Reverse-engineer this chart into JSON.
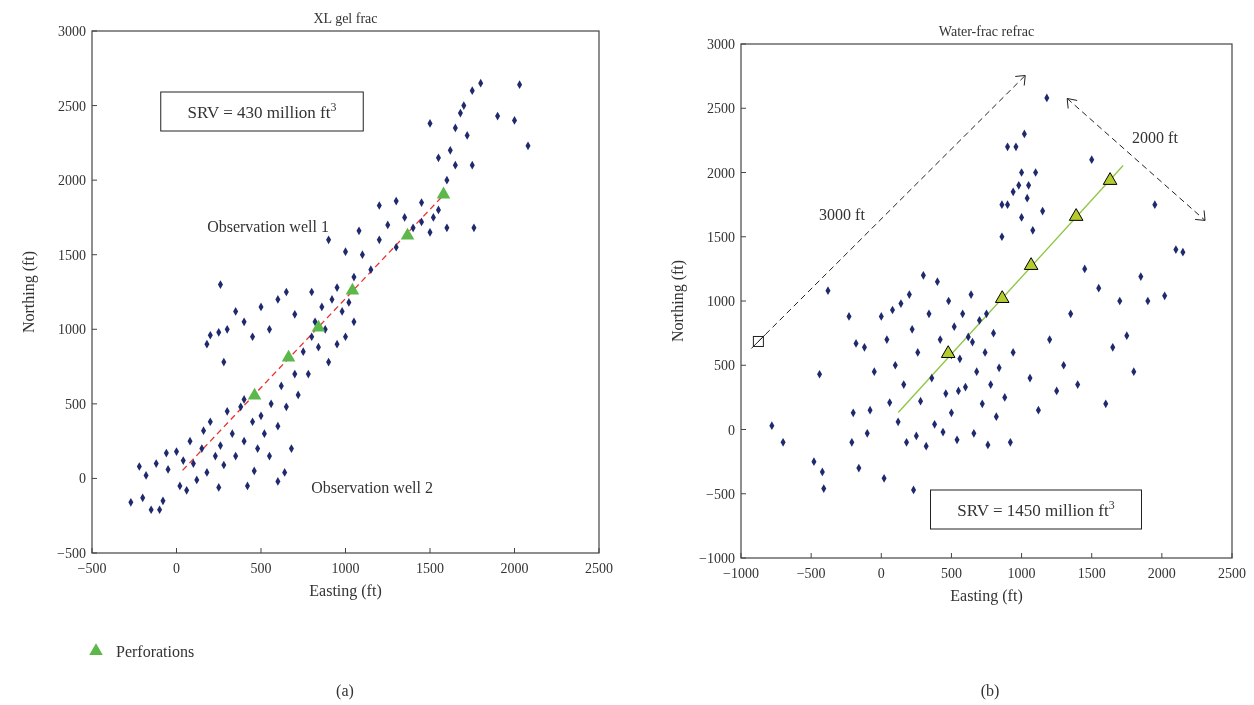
{
  "chart_data": [
    {
      "type": "scatter",
      "title": "XL gel frac",
      "xlabel": "Easting (ft)",
      "ylabel": "Northing (ft)",
      "xlim": [
        -500,
        2500
      ],
      "ylim": [
        -500,
        3000
      ],
      "xticks": [
        -500,
        0,
        500,
        1000,
        1500,
        2000,
        2500
      ],
      "yticks": [
        -500,
        0,
        500,
        1000,
        1500,
        2000,
        2500,
        3000
      ],
      "grid": false,
      "legend": "bottom left",
      "annotations": [
        "SRV = 430 million ft$^{3}$",
        "Observation well 1",
        "Observation well 2",
        "(a)"
      ],
      "series": [
        {
          "color": "#1f2a6e",
          "marker": "diamond",
          "x": [
            -270,
            -200,
            -150,
            -100,
            -80,
            -220,
            -180,
            -120,
            -60,
            -50,
            0,
            20,
            40,
            60,
            80,
            100,
            120,
            150,
            160,
            180,
            200,
            230,
            250,
            260,
            280,
            300,
            330,
            350,
            380,
            400,
            420,
            450,
            460,
            480,
            500,
            520,
            550,
            560,
            600,
            620,
            650,
            680,
            700,
            720,
            750,
            780,
            800,
            820,
            840,
            860,
            880,
            900,
            920,
            950,
            980,
            1000,
            1020,
            1050,
            700,
            650,
            600,
            550,
            500,
            450,
            400,
            350,
            300,
            250,
            200,
            180,
            260,
            280,
            800,
            1050,
            1100,
            1150,
            1200,
            1250,
            1300,
            1350,
            1400,
            1450,
            1500,
            1520,
            1550,
            1450,
            1600,
            1620,
            1550,
            1650,
            1700,
            1750,
            1800,
            1680,
            1720,
            1650,
            1750,
            1900,
            2000,
            2030,
            2080,
            1760,
            1500,
            1600,
            950,
            1080,
            1000,
            1200,
            1300,
            600,
            640,
            400,
            900
          ],
          "values": [
            -160,
            -130,
            -210,
            -210,
            -150,
            80,
            20,
            100,
            170,
            60,
            180,
            -50,
            120,
            -80,
            250,
            100,
            -10,
            200,
            320,
            40,
            380,
            150,
            -60,
            220,
            90,
            450,
            300,
            150,
            480,
            250,
            -50,
            380,
            50,
            200,
            420,
            300,
            150,
            500,
            350,
            620,
            480,
            200,
            700,
            560,
            850,
            700,
            950,
            1050,
            880,
            1150,
            1000,
            780,
            1200,
            900,
            1120,
            950,
            1180,
            1050,
            1100,
            1250,
            1200,
            1000,
            1150,
            950,
            1050,
            1120,
            1000,
            980,
            960,
            900,
            1300,
            780,
            1250,
            1350,
            1500,
            1400,
            1600,
            1700,
            1550,
            1750,
            1680,
            1720,
            1650,
            1750,
            1800,
            1850,
            2000,
            2200,
            2150,
            2350,
            2500,
            2600,
            2650,
            2450,
            2300,
            2100,
            2100,
            2430,
            2400,
            2640,
            2230,
            1680,
            2380,
            1680,
            1280,
            1660,
            1520,
            1830,
            1860,
            -20,
            40,
            530,
            1600
          ]
        },
        {
          "type": "line",
          "color": "#e8332e",
          "line_style": "dashed",
          "marker": "none",
          "x": [
            36,
            1580
          ],
          "values": [
            54,
            1900
          ]
        },
        {
          "name": "Perforations",
          "color": "#5cb84a",
          "marker": "triangle",
          "x": [
            462,
            663,
            840,
            1041,
            1367,
            1580
          ],
          "values": [
            556,
            811,
            1012,
            1260,
            1629,
            1904
          ]
        }
      ]
    },
    {
      "type": "scatter",
      "title": "Water-frac refrac",
      "xlabel": "Easting (ft)",
      "ylabel": "Northing (ft)",
      "xlim": [
        -1000,
        2500
      ],
      "ylim": [
        -1000,
        3000
      ],
      "xticks": [
        -1000,
        -500,
        0,
        500,
        1000,
        1500,
        2000,
        2500
      ],
      "yticks": [
        -1000,
        -500,
        0,
        500,
        1000,
        1500,
        2000,
        2500,
        3000
      ],
      "grid": false,
      "annotations": [
        "SRV = 1450 million ft$^{3}$",
        "3000 ft",
        "2000 ft",
        "(b)"
      ],
      "series": [
        {
          "color": "#1f2a6e",
          "marker": "diamond",
          "x": [
            -780,
            -700,
            -480,
            -420,
            -410,
            -440,
            -380,
            -230,
            -210,
            -200,
            -180,
            -160,
            -120,
            -100,
            -80,
            -50,
            0,
            20,
            40,
            60,
            80,
            100,
            120,
            140,
            160,
            180,
            200,
            220,
            230,
            250,
            260,
            280,
            300,
            320,
            340,
            360,
            380,
            400,
            420,
            440,
            460,
            480,
            500,
            520,
            540,
            560,
            580,
            600,
            620,
            640,
            660,
            680,
            700,
            720,
            740,
            760,
            780,
            800,
            820,
            840,
            860,
            880,
            900,
            920,
            940,
            960,
            980,
            1000,
            1020,
            1040,
            1060,
            1080,
            1100,
            1120,
            1150,
            1180,
            1200,
            1250,
            1300,
            1350,
            1400,
            1450,
            1500,
            1550,
            1600,
            1650,
            1700,
            1750,
            1800,
            1900,
            1950,
            2020,
            2100,
            2150,
            1850,
            1000,
            900,
            1050,
            860,
            940,
            500,
            650,
            750,
            550
          ],
          "values": [
            30,
            -100,
            -250,
            -330,
            -460,
            430,
            1080,
            880,
            -100,
            130,
            670,
            -300,
            640,
            -30,
            150,
            450,
            880,
            -380,
            700,
            210,
            930,
            500,
            60,
            980,
            350,
            -100,
            1050,
            780,
            -470,
            -50,
            600,
            220,
            1200,
            -130,
            900,
            400,
            40,
            1150,
            700,
            -20,
            280,
            1000,
            130,
            800,
            -80,
            550,
            900,
            330,
            720,
            1050,
            -30,
            450,
            850,
            200,
            600,
            -120,
            350,
            750,
            100,
            480,
            1500,
            250,
            1750,
            -100,
            600,
            2200,
            1900,
            1650,
            2300,
            1800,
            400,
            1550,
            2000,
            150,
            1700,
            2580,
            700,
            300,
            500,
            900,
            350,
            1250,
            2100,
            1100,
            200,
            640,
            1000,
            730,
            450,
            1000,
            1750,
            1040,
            1400,
            1380,
            1190,
            2000,
            2200,
            1900,
            1750,
            1850,
            580,
            680,
            900,
            300
          ]
        },
        {
          "type": "line",
          "color": "#8dc63f",
          "line_style": "solid",
          "marker": "none",
          "x": [
            121,
            1724
          ],
          "values": [
            132,
            2054
          ]
        },
        {
          "color": "#b5cc2e",
          "marker": "triangle",
          "x": [
            477,
            862,
            1068,
            1389,
            1631
          ],
          "values": [
            591,
            1019,
            1276,
            1658,
            1938
          ]
        }
      ]
    }
  ]
}
